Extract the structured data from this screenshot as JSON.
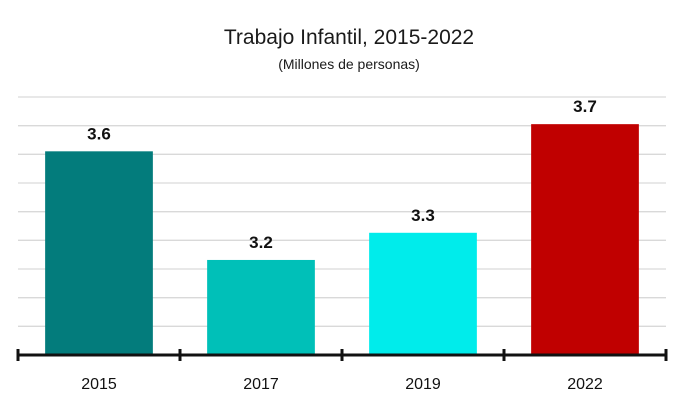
{
  "chart_data": {
    "type": "bar",
    "title": "Trabajo Infantil, 2015-2022",
    "subtitle": "(Millones de personas)",
    "categories": [
      "2015",
      "2017",
      "2019",
      "2022"
    ],
    "values": [
      3.6,
      3.2,
      3.3,
      3.7
    ],
    "colors": [
      "#037c7c",
      "#00c0b8",
      "#00eceb",
      "#c00000"
    ],
    "ylim": [
      2.85,
      3.8
    ],
    "grid": true,
    "legend": "none",
    "data_labels": [
      "3.6",
      "3.2",
      "3.3",
      "3.7"
    ]
  }
}
